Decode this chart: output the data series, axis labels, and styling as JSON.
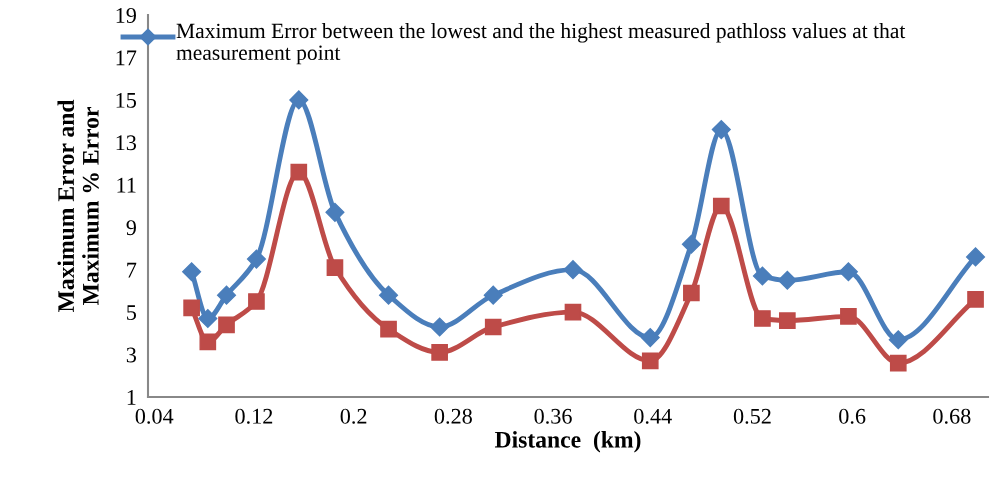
{
  "chart_data": {
    "type": "line",
    "xlabel": "Distance  (km)",
    "ylabel": "Maximum Error and\nMaximum % Error",
    "x": [
      0.07,
      0.083,
      0.098,
      0.122,
      0.156,
      0.185,
      0.228,
      0.269,
      0.312,
      0.376,
      0.438,
      0.471,
      0.495,
      0.528,
      0.548,
      0.597,
      0.637,
      0.699
    ],
    "series": [
      {
        "name": "Maximum Error between the lowest and the highest measured pathloss values at that measurement point",
        "color": "#4a7ebb",
        "marker": "diamond",
        "values": [
          6.9,
          4.7,
          5.8,
          7.5,
          15.0,
          9.7,
          5.8,
          4.3,
          5.8,
          7.0,
          3.8,
          8.2,
          13.6,
          6.7,
          6.5,
          6.9,
          3.7,
          7.6
        ]
      },
      {
        "color": "#be4b48",
        "marker": "square",
        "values": [
          5.2,
          3.6,
          4.4,
          5.5,
          11.6,
          7.1,
          4.2,
          3.1,
          4.3,
          5.0,
          2.7,
          5.9,
          10.0,
          4.7,
          4.6,
          4.8,
          2.6,
          5.6
        ]
      }
    ],
    "xlim": [
      0.035,
      0.709
    ],
    "xticks": [
      0.04,
      0.12,
      0.2,
      0.28,
      0.36,
      0.44,
      0.52,
      0.6,
      0.68
    ],
    "ylim": [
      1,
      19
    ],
    "yticks": [
      1,
      3,
      5,
      7,
      9,
      11,
      13,
      15,
      17,
      19
    ],
    "grid": false,
    "legend": "top",
    "line_style": "solid"
  }
}
